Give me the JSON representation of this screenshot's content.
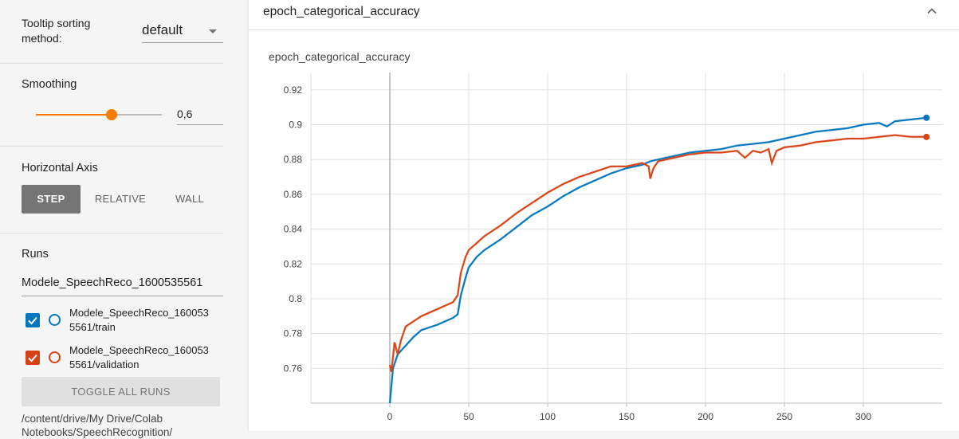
{
  "sidebar": {
    "tooltip_label": "Tooltip sorting method:",
    "tooltip_value": "default",
    "smoothing_label": "Smoothing",
    "smoothing_value": "0,6",
    "smoothing_fraction": 0.6,
    "axis_label": "Horizontal Axis",
    "axis_options": [
      "STEP",
      "RELATIVE",
      "WALL"
    ],
    "axis_selected": "STEP",
    "runs_label": "Runs",
    "runs_filter": "Modele_SpeechReco_1600535561",
    "runs": [
      {
        "name_line1": "Modele_SpeechReco_160053",
        "name_line2": "5561/train",
        "color": "#0277bd",
        "checked": true
      },
      {
        "name_line1": "Modele_SpeechReco_160053",
        "name_line2": "5561/validation",
        "color": "#d84315",
        "checked": true
      }
    ],
    "toggle_label": "TOGGLE ALL RUNS",
    "path": "/content/drive/My Drive/Colab Notebooks/SpeechRecognition/"
  },
  "card": {
    "header_title": "epoch_categorical_accuracy",
    "chart_title": "epoch_categorical_accuracy"
  },
  "chart_data": {
    "type": "line",
    "title": "epoch_categorical_accuracy",
    "xlabel": "",
    "ylabel": "",
    "xlim": [
      -50,
      350
    ],
    "ylim": [
      0.74,
      0.93
    ],
    "xticks": [
      0,
      50,
      100,
      150,
      200,
      250,
      300
    ],
    "yticks": [
      0.76,
      0.78,
      0.8,
      0.82,
      0.84,
      0.86,
      0.88,
      0.9,
      0.92
    ],
    "grid": true,
    "series": [
      {
        "name": "Modele_SpeechReco_1600535561/train",
        "color": "#0277bd",
        "x": [
          0,
          2,
          5,
          10,
          15,
          20,
          30,
          40,
          43,
          45,
          48,
          50,
          55,
          60,
          70,
          80,
          90,
          100,
          110,
          120,
          130,
          140,
          150,
          160,
          165,
          170,
          180,
          190,
          200,
          210,
          220,
          230,
          240,
          250,
          260,
          270,
          280,
          290,
          300,
          310,
          315,
          320,
          330,
          340
        ],
        "values": [
          0.74,
          0.76,
          0.768,
          0.773,
          0.778,
          0.782,
          0.785,
          0.789,
          0.791,
          0.802,
          0.812,
          0.818,
          0.824,
          0.828,
          0.834,
          0.841,
          0.848,
          0.853,
          0.859,
          0.864,
          0.868,
          0.872,
          0.875,
          0.877,
          0.879,
          0.88,
          0.882,
          0.884,
          0.885,
          0.886,
          0.888,
          0.889,
          0.89,
          0.892,
          0.894,
          0.896,
          0.897,
          0.898,
          0.9,
          0.901,
          0.899,
          0.902,
          0.903,
          0.904
        ]
      },
      {
        "name": "Modele_SpeechReco_1600535561/validation",
        "color": "#d84315",
        "x": [
          0,
          1,
          3,
          5,
          7,
          10,
          15,
          20,
          30,
          40,
          43,
          45,
          48,
          50,
          55,
          60,
          70,
          80,
          90,
          100,
          110,
          120,
          130,
          140,
          150,
          160,
          164,
          165,
          167,
          170,
          180,
          190,
          200,
          210,
          220,
          225,
          230,
          235,
          240,
          242,
          245,
          250,
          260,
          270,
          280,
          290,
          300,
          310,
          320,
          330,
          340
        ],
        "values": [
          0.762,
          0.758,
          0.775,
          0.768,
          0.776,
          0.784,
          0.787,
          0.79,
          0.794,
          0.798,
          0.802,
          0.815,
          0.824,
          0.828,
          0.832,
          0.836,
          0.842,
          0.849,
          0.855,
          0.861,
          0.866,
          0.87,
          0.873,
          0.876,
          0.876,
          0.878,
          0.876,
          0.869,
          0.875,
          0.879,
          0.881,
          0.883,
          0.884,
          0.884,
          0.885,
          0.881,
          0.885,
          0.884,
          0.886,
          0.878,
          0.885,
          0.887,
          0.888,
          0.89,
          0.891,
          0.892,
          0.892,
          0.893,
          0.894,
          0.893,
          0.893
        ]
      }
    ]
  }
}
